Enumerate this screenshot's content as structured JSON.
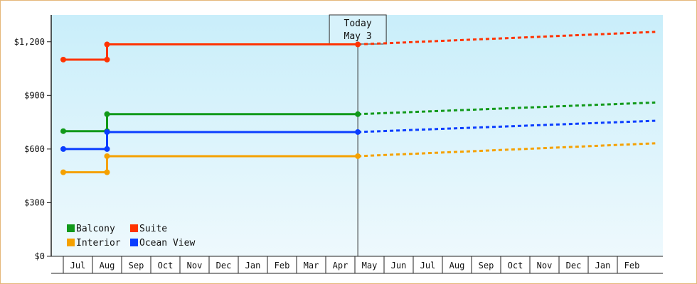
{
  "chart_data": {
    "type": "line",
    "y_ticks": [
      0,
      300,
      600,
      900,
      1200
    ],
    "y_tick_labels": [
      "$0",
      "$300",
      "$600",
      "$900",
      "$1,200"
    ],
    "ylim": [
      0,
      1350
    ],
    "months": [
      "Jul",
      "Aug",
      "Sep",
      "Oct",
      "Nov",
      "Dec",
      "Jan",
      "Feb",
      "Mar",
      "Apr",
      "May",
      "Jun",
      "Jul",
      "Aug",
      "Sep",
      "Oct",
      "Nov",
      "Dec",
      "Jan",
      "Feb"
    ],
    "today": {
      "line1": "Today",
      "line2": "May 3",
      "month_index": 10.1
    },
    "x_range": [
      0,
      20.3
    ],
    "series": [
      {
        "name": "Suite",
        "color": "#ff3300",
        "points": [
          [
            0,
            1100
          ],
          [
            1.5,
            1100
          ],
          [
            1.5,
            1185
          ],
          [
            10.1,
            1185
          ]
        ],
        "markers": [
          [
            0,
            1100
          ],
          [
            1.5,
            1100
          ],
          [
            1.5,
            1185
          ],
          [
            10.1,
            1185
          ]
        ],
        "forecast": [
          [
            10.1,
            1185
          ],
          [
            20.3,
            1255
          ]
        ]
      },
      {
        "name": "Balcony",
        "color": "#11991a",
        "points": [
          [
            0,
            700
          ],
          [
            1.5,
            700
          ],
          [
            1.5,
            795
          ],
          [
            10.1,
            795
          ]
        ],
        "markers": [
          [
            0,
            700
          ],
          [
            1.5,
            700
          ],
          [
            1.5,
            795
          ],
          [
            10.1,
            795
          ]
        ],
        "forecast": [
          [
            10.1,
            795
          ],
          [
            20.3,
            860
          ]
        ]
      },
      {
        "name": "Ocean View",
        "color": "#0a3dff",
        "points": [
          [
            0,
            600
          ],
          [
            1.5,
            600
          ],
          [
            1.5,
            695
          ],
          [
            10.1,
            695
          ]
        ],
        "markers": [
          [
            0,
            600
          ],
          [
            1.5,
            600
          ],
          [
            1.5,
            695
          ],
          [
            10.1,
            695
          ]
        ],
        "forecast": [
          [
            10.1,
            695
          ],
          [
            20.3,
            758
          ]
        ]
      },
      {
        "name": "Interior",
        "color": "#f5a100",
        "points": [
          [
            0,
            470
          ],
          [
            1.5,
            470
          ],
          [
            1.5,
            560
          ],
          [
            10.1,
            560
          ]
        ],
        "markers": [
          [
            0,
            470
          ],
          [
            1.5,
            470
          ],
          [
            1.5,
            560
          ],
          [
            10.1,
            560
          ]
        ],
        "forecast": [
          [
            10.1,
            560
          ],
          [
            20.3,
            632
          ]
        ]
      }
    ],
    "legend": {
      "placement": "bottom-left",
      "items": [
        {
          "label": "Balcony",
          "color": "#11991a"
        },
        {
          "label": "Suite",
          "color": "#ff3300"
        },
        {
          "label": "Interior",
          "color": "#f5a100"
        },
        {
          "label": "Ocean View",
          "color": "#0a3dff"
        }
      ]
    }
  }
}
